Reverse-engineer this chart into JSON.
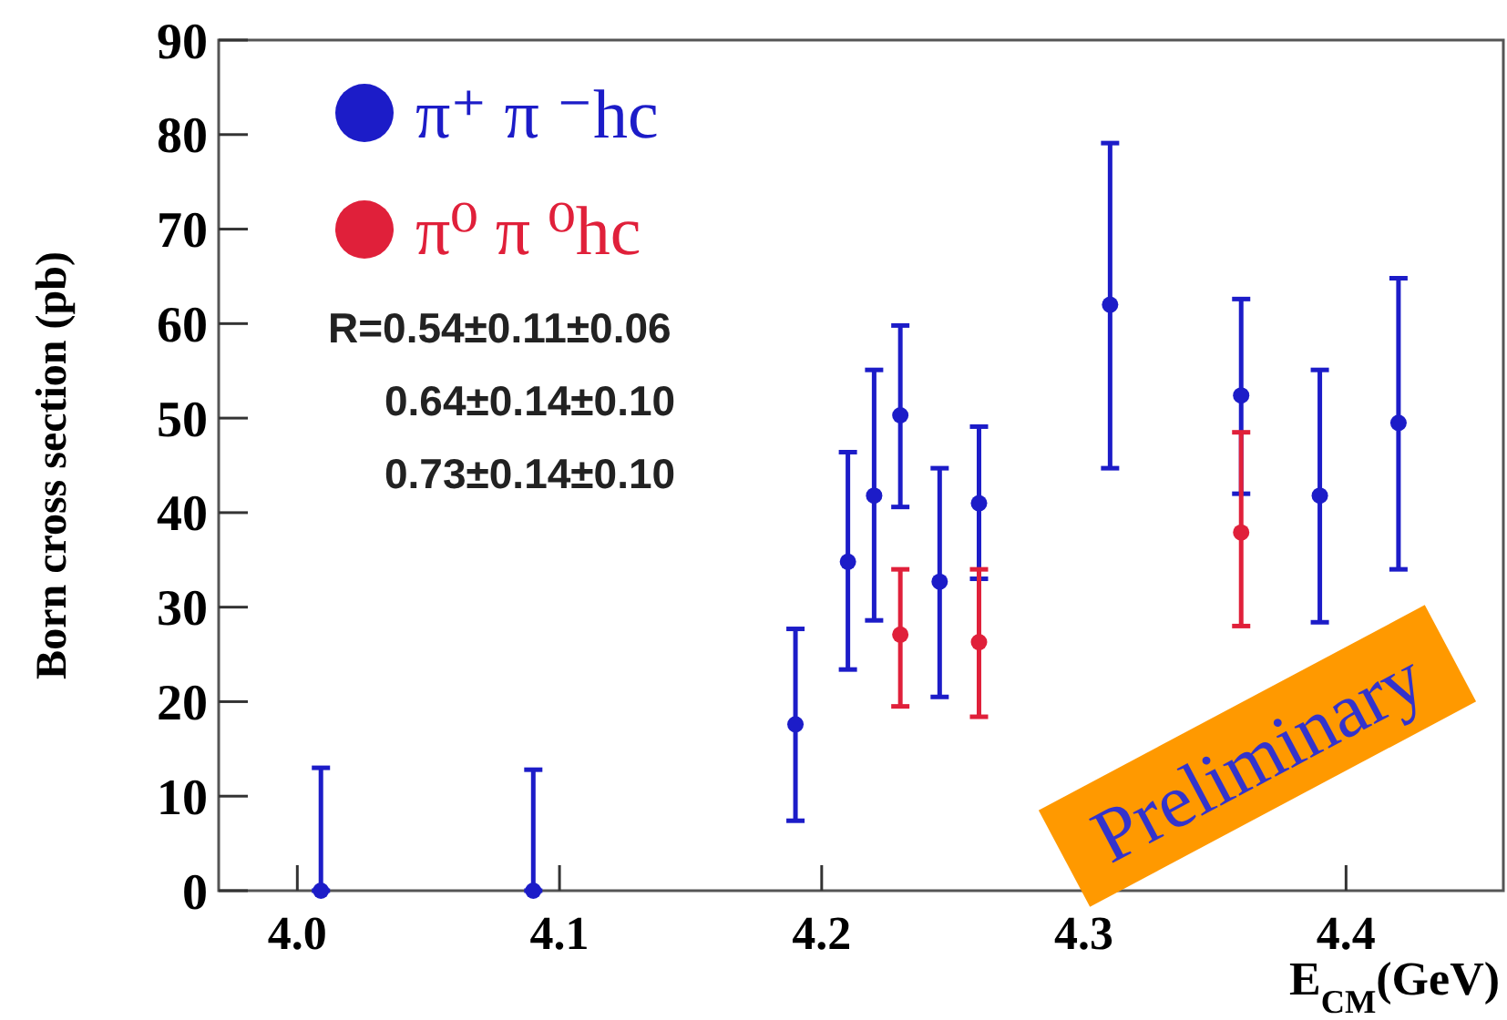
{
  "chart_data": {
    "type": "scatter",
    "xlabel": "E$_{CM}$(GeV)",
    "ylabel": "Born cross section (pb)",
    "xlim": [
      3.97,
      4.46
    ],
    "xticks": [
      {
        "value": 4,
        "label": "4.0"
      },
      {
        "value": 4.1,
        "label": "4.1"
      },
      {
        "value": 4.2,
        "label": "4.2"
      },
      {
        "value": 4.3,
        "label": "4.3"
      },
      {
        "value": 4.4,
        "label": "4.4"
      }
    ],
    "ylim": [
      0,
      90
    ],
    "yticks": [
      0,
      10,
      20,
      30,
      40,
      50,
      60,
      70,
      80,
      90
    ],
    "grid": false,
    "legend": "top left",
    "marker": "circle",
    "series": [
      {
        "name": "π⁺ π ⁻hc",
        "color": "#1c1cc8",
        "x": [
          4.009,
          4.09,
          4.19,
          4.21,
          4.22,
          4.23,
          4.245,
          4.26,
          4.31,
          4.36,
          4.39,
          4.42
        ],
        "values": [
          0,
          0,
          17.6,
          34.8,
          41.8,
          50.3,
          32.7,
          41.0,
          62.0,
          52.4,
          41.8,
          49.5
        ],
        "errors": [
          [
            0,
            13
          ],
          [
            0,
            12.8
          ],
          [
            7.4,
            27.7
          ],
          [
            23.4,
            46.4
          ],
          [
            28.6,
            55.1
          ],
          [
            40.6,
            59.8
          ],
          [
            20.5,
            44.7
          ],
          [
            33,
            49.1
          ],
          [
            44.7,
            79.1
          ],
          [
            42,
            62.6
          ],
          [
            28.4,
            55.1
          ],
          [
            34.0,
            64.8
          ]
        ]
      },
      {
        "name": "π⁰ π ⁰hc",
        "color": "#e0203a",
        "x": [
          4.23,
          4.26,
          4.36
        ],
        "values": [
          27.1,
          26.3,
          37.9
        ],
        "errors": [
          [
            19.5,
            34.0
          ],
          [
            18.4,
            34.0
          ],
          [
            28.0,
            48.5
          ]
        ]
      }
    ],
    "annotations": [
      "R=0.54±0.11±0.06",
      "0.64±0.14±0.10",
      "0.73±0.14±0.10",
      "Preliminary"
    ]
  }
}
